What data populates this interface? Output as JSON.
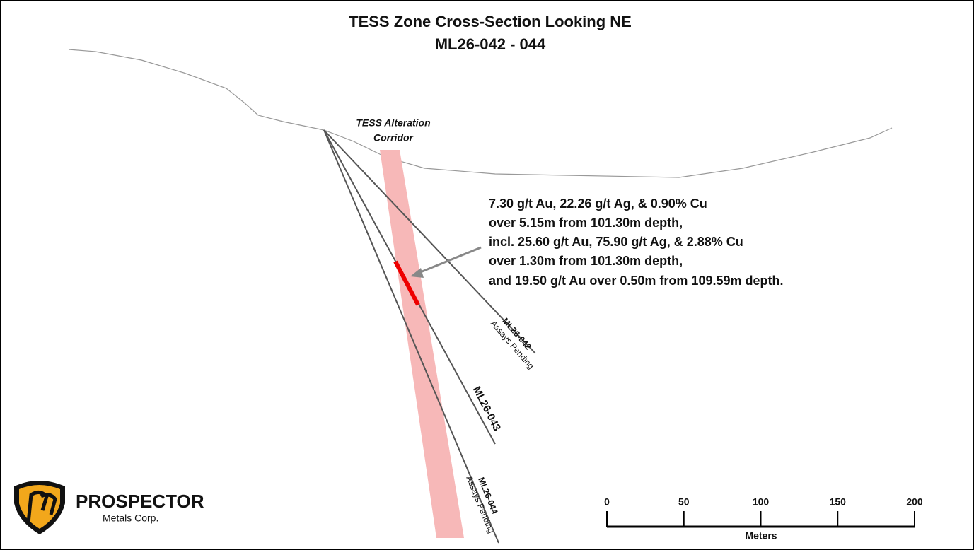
{
  "title": {
    "line1": "TESS Zone Cross-Section Looking NE",
    "line2": "ML26-042 - 044"
  },
  "corridor_label": [
    "TESS Alteration",
    "Corridor"
  ],
  "annotation": [
    "7.30 g/t Au, 22.26 g/t Ag, & 0.90% Cu",
    "over 5.15m from 101.30m depth,",
    "incl. 25.60 g/t Au, 75.90 g/t Ag, & 2.88% Cu",
    "over 1.30m from 101.30m depth,",
    "and 19.50 g/t Au over 0.50m from 109.59m depth."
  ],
  "drill_holes": [
    {
      "name": "ML26-042",
      "note": "Assays Pending"
    },
    {
      "name": "ML26-043"
    },
    {
      "name": "ML26-044",
      "note": "Assays Pending"
    }
  ],
  "logo": {
    "name": "PROSPECTOR",
    "subtitle": "Metals Corp."
  },
  "scale": {
    "ticks": [
      0,
      50,
      100,
      150,
      200
    ],
    "label": "Meters"
  }
}
